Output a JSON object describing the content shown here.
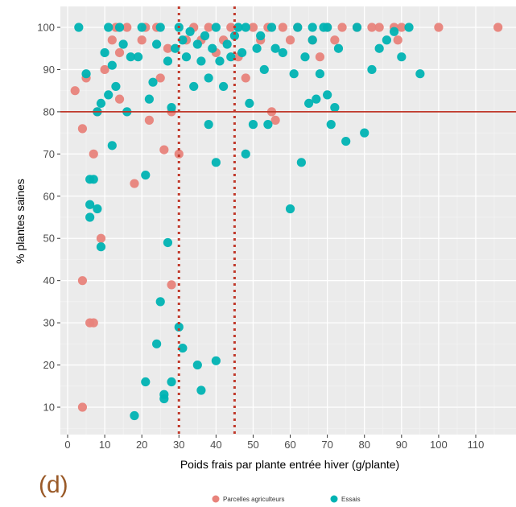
{
  "chart_data": {
    "type": "scatter",
    "xlabel": "Poids frais par plante entrée hiver (g/plante)",
    "ylabel": "% plantes saines",
    "panel_label": "(d)",
    "xlim": [
      0,
      118
    ],
    "ylim": [
      3,
      104
    ],
    "x_ticks": [
      "0",
      "10",
      "20",
      "30",
      "40",
      "50",
      "60",
      "70",
      "80",
      "90",
      "100",
      "110"
    ],
    "y_ticks": [
      "10",
      "20",
      "30",
      "40",
      "50",
      "60",
      "70",
      "80",
      "90",
      "100"
    ],
    "grid": true,
    "legend_position": "bottom",
    "reference_lines": {
      "horizontal": {
        "y": 80,
        "color": "#c0392b",
        "style": "solid"
      },
      "vertical": [
        {
          "x": 30,
          "color": "#c0392b",
          "style": "dotted"
        },
        {
          "x": 45,
          "color": "#c0392b",
          "style": "dotted"
        }
      ]
    },
    "series": [
      {
        "name": "Parcelles agriculteurs",
        "color": "#e8837b",
        "points": [
          [
            2,
            85
          ],
          [
            4,
            76
          ],
          [
            4,
            40
          ],
          [
            5,
            88
          ],
          [
            6,
            30
          ],
          [
            7,
            30
          ],
          [
            7,
            70
          ],
          [
            4,
            10
          ],
          [
            9,
            50
          ],
          [
            8,
            80
          ],
          [
            10,
            90
          ],
          [
            12,
            97
          ],
          [
            13,
            100
          ],
          [
            14,
            94
          ],
          [
            14,
            83
          ],
          [
            16,
            100
          ],
          [
            18,
            63
          ],
          [
            20,
            97
          ],
          [
            21,
            100
          ],
          [
            22,
            78
          ],
          [
            24,
            100
          ],
          [
            25,
            88
          ],
          [
            26,
            71
          ],
          [
            27,
            95
          ],
          [
            28,
            39
          ],
          [
            30,
            70
          ],
          [
            28,
            80
          ],
          [
            32,
            97
          ],
          [
            34,
            100
          ],
          [
            36,
            97
          ],
          [
            38,
            100
          ],
          [
            40,
            94
          ],
          [
            42,
            97
          ],
          [
            44,
            100
          ],
          [
            46,
            93
          ],
          [
            48,
            88
          ],
          [
            50,
            100
          ],
          [
            52,
            97
          ],
          [
            55,
            80
          ],
          [
            56,
            78
          ],
          [
            58,
            100
          ],
          [
            62,
            100
          ],
          [
            66,
            97
          ],
          [
            68,
            93
          ],
          [
            70,
            100
          ],
          [
            72,
            97
          ],
          [
            74,
            100
          ],
          [
            78,
            100
          ],
          [
            82,
            100
          ],
          [
            84,
            100
          ],
          [
            88,
            100
          ],
          [
            89,
            97
          ],
          [
            90,
            100
          ],
          [
            100,
            100
          ],
          [
            116,
            100
          ],
          [
            54,
            100
          ],
          [
            60,
            97
          ]
        ]
      },
      {
        "name": "Essais",
        "color": "#00b3b3",
        "points": [
          [
            3,
            100
          ],
          [
            5,
            89
          ],
          [
            6,
            58
          ],
          [
            6,
            55
          ],
          [
            6,
            64
          ],
          [
            7,
            64
          ],
          [
            8,
            57
          ],
          [
            8,
            80
          ],
          [
            9,
            48
          ],
          [
            9,
            82
          ],
          [
            10,
            94
          ],
          [
            11,
            84
          ],
          [
            11,
            100
          ],
          [
            12,
            72
          ],
          [
            12,
            91
          ],
          [
            13,
            86
          ],
          [
            14,
            100
          ],
          [
            15,
            96
          ],
          [
            16,
            80
          ],
          [
            17,
            93
          ],
          [
            18,
            8
          ],
          [
            19,
            93
          ],
          [
            20,
            100
          ],
          [
            21,
            16
          ],
          [
            21,
            65
          ],
          [
            22,
            83
          ],
          [
            23,
            87
          ],
          [
            24,
            25
          ],
          [
            24,
            96
          ],
          [
            25,
            35
          ],
          [
            25,
            100
          ],
          [
            26,
            12
          ],
          [
            26,
            13
          ],
          [
            27,
            49
          ],
          [
            27,
            92
          ],
          [
            28,
            16
          ],
          [
            28,
            81
          ],
          [
            29,
            95
          ],
          [
            30,
            29
          ],
          [
            30,
            100
          ],
          [
            31,
            24
          ],
          [
            31,
            97
          ],
          [
            32,
            93
          ],
          [
            33,
            99
          ],
          [
            34,
            86
          ],
          [
            35,
            20
          ],
          [
            35,
            96
          ],
          [
            36,
            14
          ],
          [
            36,
            92
          ],
          [
            37,
            98
          ],
          [
            38,
            77
          ],
          [
            38,
            88
          ],
          [
            39,
            95
          ],
          [
            40,
            21
          ],
          [
            40,
            68
          ],
          [
            40,
            100
          ],
          [
            41,
            92
          ],
          [
            42,
            86
          ],
          [
            43,
            96
          ],
          [
            44,
            93
          ],
          [
            45,
            98
          ],
          [
            46,
            100
          ],
          [
            47,
            94
          ],
          [
            48,
            70
          ],
          [
            48,
            100
          ],
          [
            49,
            82
          ],
          [
            50,
            77
          ],
          [
            51,
            95
          ],
          [
            52,
            98
          ],
          [
            53,
            90
          ],
          [
            54,
            77
          ],
          [
            55,
            100
          ],
          [
            56,
            95
          ],
          [
            58,
            94
          ],
          [
            60,
            57
          ],
          [
            61,
            89
          ],
          [
            62,
            100
          ],
          [
            63,
            68
          ],
          [
            64,
            93
          ],
          [
            65,
            82
          ],
          [
            66,
            97
          ],
          [
            67,
            83
          ],
          [
            68,
            89
          ],
          [
            69,
            100
          ],
          [
            70,
            84
          ],
          [
            71,
            77
          ],
          [
            72,
            81
          ],
          [
            73,
            95
          ],
          [
            75,
            73
          ],
          [
            78,
            100
          ],
          [
            80,
            75
          ],
          [
            82,
            90
          ],
          [
            84,
            95
          ],
          [
            86,
            97
          ],
          [
            88,
            99
          ],
          [
            90,
            93
          ],
          [
            92,
            100
          ],
          [
            95,
            89
          ],
          [
            70,
            100
          ],
          [
            66,
            100
          ]
        ]
      }
    ]
  }
}
